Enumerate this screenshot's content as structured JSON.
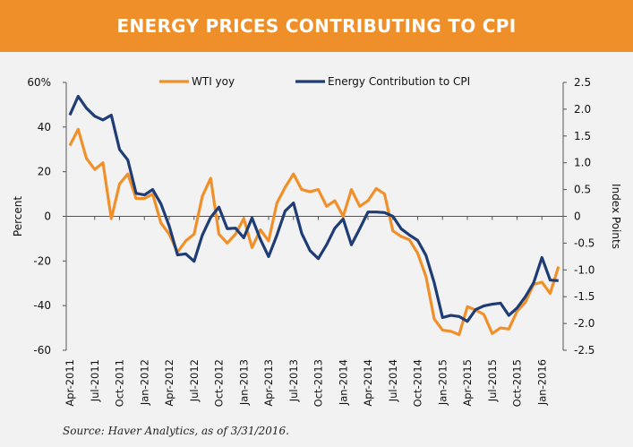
{
  "header": {
    "title": "ENERGY PRICES CONTRIBUTING TO CPI"
  },
  "source": "Source: Haver Analytics, as of 3/31/2016.",
  "colors": {
    "header": "#ee8f2a",
    "wti": "#f0902a",
    "energy": "#1f3d74",
    "background": "#f2f2f2"
  },
  "chart_data": {
    "type": "line",
    "title": "ENERGY PRICES CONTRIBUTING TO CPI",
    "ylabel": "Percent",
    "y2label": "Index Points",
    "ylim": [
      -60,
      60
    ],
    "y2lim": [
      -2.5,
      2.5
    ],
    "yticks": [
      "60%",
      "40",
      "20",
      "0",
      "-20",
      "-40",
      "-60"
    ],
    "y2ticks": [
      "2.5",
      "2.0",
      "1.5",
      "1.0",
      "0.5",
      "0",
      "-0.5",
      "-1.0",
      "-1.5",
      "-2.0",
      "-2.5"
    ],
    "x_start": "Apr-2011",
    "x_end": "Mar-2016",
    "x_frequency": "monthly",
    "xticks": [
      "Apr-2011",
      "Jul-2011",
      "Oct-2011",
      "Jan-2012",
      "Apr-2012",
      "Jul-2012",
      "Oct-2012",
      "Jan-2013",
      "Apr-2013",
      "Jul-2013",
      "Oct-2013",
      "Jan-2014",
      "Apr-2014",
      "Jul-2014",
      "Oct-2014",
      "Jan-2015",
      "Apr-2015",
      "Jul-2015",
      "Oct-2015",
      "Jan-2016"
    ],
    "legend_position": "top",
    "grid": false,
    "series": [
      {
        "name": "WTI yoy",
        "axis": "left",
        "values": [
          31.7,
          39,
          26,
          21,
          24,
          -1,
          14.5,
          19,
          8,
          8,
          10,
          -3,
          -8,
          -16,
          -11,
          -8,
          9,
          17,
          -8,
          -12,
          -8,
          -1,
          -14,
          -6,
          -11,
          6,
          13,
          19,
          12,
          11,
          12,
          4.5,
          7,
          0,
          12,
          4.5,
          7,
          12.5,
          10,
          -6.5,
          -9,
          -10.5,
          -16.5,
          -27,
          -46,
          -51,
          -51.5,
          -53,
          -40.5,
          -42,
          -44,
          -52.5,
          -50,
          -50.5,
          -42.5,
          -38.5,
          -30.5,
          -29.5,
          -34.5,
          -22.5
        ]
      },
      {
        "name": "Energy Contribution to CPI",
        "axis": "right",
        "values": [
          1.89,
          2.24,
          2.02,
          1.87,
          1.8,
          1.89,
          1.25,
          1.05,
          0.43,
          0.4,
          0.5,
          0.23,
          -0.18,
          -0.72,
          -0.7,
          -0.84,
          -0.35,
          -0.02,
          0.17,
          -0.23,
          -0.22,
          -0.4,
          -0.03,
          -0.43,
          -0.75,
          -0.35,
          0.1,
          0.25,
          -0.32,
          -0.64,
          -0.79,
          -0.53,
          -0.22,
          -0.05,
          -0.53,
          -0.23,
          0.08,
          0.08,
          0.07,
          0,
          -0.23,
          -0.35,
          -0.45,
          -0.73,
          -1.24,
          -1.89,
          -1.85,
          -1.87,
          -1.96,
          -1.74,
          -1.67,
          -1.64,
          -1.62,
          -1.85,
          -1.71,
          -1.5,
          -1.24,
          -0.77,
          -1.19,
          -1.2
        ]
      }
    ]
  }
}
